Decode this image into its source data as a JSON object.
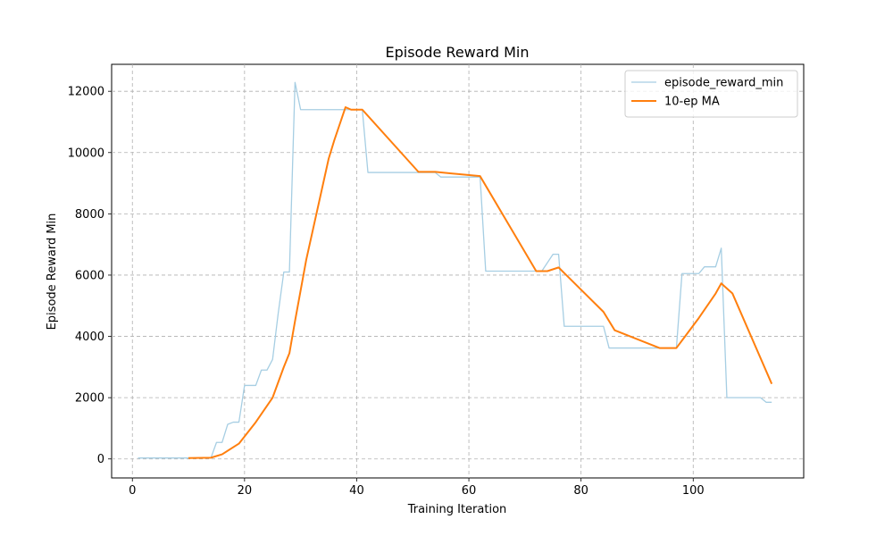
{
  "chart_data": {
    "type": "line",
    "title": "Episode Reward Min",
    "xlabel": "Training Iteration",
    "ylabel": "Episode Reward Min",
    "xlim": [
      -3.7,
      119.7
    ],
    "ylim": [
      -620,
      12880
    ],
    "xticks": [
      0,
      20,
      40,
      60,
      80,
      100
    ],
    "yticks": [
      0,
      2000,
      4000,
      6000,
      8000,
      10000,
      12000
    ],
    "grid": true,
    "legend_position": "top-right",
    "series": [
      {
        "name": "episode_reward_min",
        "color": "#a6cee3",
        "style": "thin",
        "points": [
          [
            1,
            30
          ],
          [
            13,
            30
          ],
          [
            14,
            30
          ],
          [
            15,
            540
          ],
          [
            16,
            540
          ],
          [
            17,
            1130
          ],
          [
            18,
            1200
          ],
          [
            19,
            1200
          ],
          [
            20,
            2400
          ],
          [
            22,
            2400
          ],
          [
            23,
            2900
          ],
          [
            24,
            2900
          ],
          [
            25,
            3250
          ],
          [
            26,
            4750
          ],
          [
            27,
            6100
          ],
          [
            28,
            6100
          ],
          [
            29,
            12290
          ],
          [
            30,
            11400
          ],
          [
            40,
            11400
          ],
          [
            41,
            11400
          ],
          [
            42,
            9350
          ],
          [
            51,
            9350
          ],
          [
            54,
            9350
          ],
          [
            55,
            9200
          ],
          [
            62,
            9200
          ],
          [
            63,
            6130
          ],
          [
            73,
            6130
          ],
          [
            75,
            6680
          ],
          [
            76,
            6680
          ],
          [
            77,
            4330
          ],
          [
            84,
            4330
          ],
          [
            85,
            3620
          ],
          [
            97,
            3620
          ],
          [
            98,
            6050
          ],
          [
            101,
            6050
          ],
          [
            102,
            6270
          ],
          [
            104,
            6270
          ],
          [
            105,
            6880
          ],
          [
            106,
            2000
          ],
          [
            112,
            2000
          ],
          [
            113,
            1850
          ],
          [
            114,
            1850
          ]
        ]
      },
      {
        "name": "10-ep MA",
        "color": "#ff7f0e",
        "style": "thick",
        "points": [
          [
            10,
            30
          ],
          [
            14,
            40
          ],
          [
            16,
            150
          ],
          [
            19,
            500
          ],
          [
            22,
            1200
          ],
          [
            25,
            2000
          ],
          [
            27,
            3000
          ],
          [
            28,
            3450
          ],
          [
            29,
            4500
          ],
          [
            31,
            6500
          ],
          [
            35,
            9800
          ],
          [
            36,
            10400
          ],
          [
            38,
            11480
          ],
          [
            39,
            11400
          ],
          [
            41,
            11400
          ],
          [
            51,
            9370
          ],
          [
            54,
            9370
          ],
          [
            62,
            9230
          ],
          [
            72,
            6130
          ],
          [
            74,
            6130
          ],
          [
            76,
            6250
          ],
          [
            84,
            4800
          ],
          [
            86,
            4200
          ],
          [
            94,
            3620
          ],
          [
            97,
            3620
          ],
          [
            101,
            4600
          ],
          [
            104,
            5400
          ],
          [
            105,
            5730
          ],
          [
            107,
            5400
          ],
          [
            114,
            2450
          ]
        ]
      }
    ]
  }
}
